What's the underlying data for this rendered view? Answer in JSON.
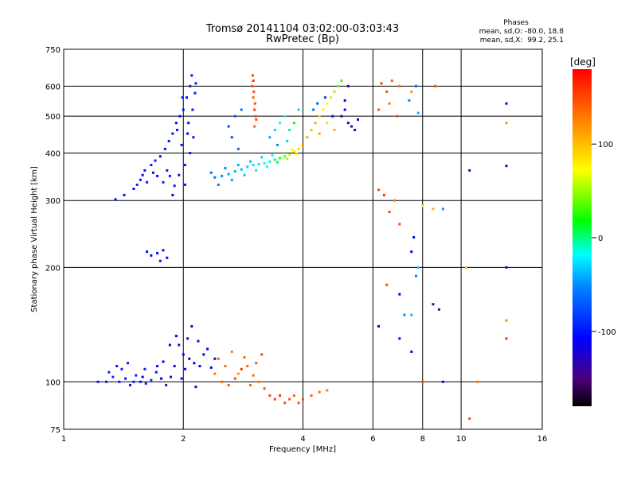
{
  "chart_data": {
    "type": "scatter",
    "title": "Tromsø 20141104 03:02:00-03:03:43",
    "subtitle": "RwPretec (Bp)",
    "xlabel": "Frequency [MHz]",
    "ylabel": "Stationary phase Virtual Height [km]",
    "x_scale": "log",
    "y_scale": "log",
    "xlim": [
      1,
      16
    ],
    "ylim": [
      75,
      750
    ],
    "x_ticks": [
      1,
      2,
      4,
      6,
      8,
      10,
      16
    ],
    "y_ticks": [
      75,
      100,
      200,
      300,
      400,
      500,
      600,
      750
    ],
    "grid": true,
    "legend": {
      "title": "Phases",
      "lines": [
        "mean, sd,O: -80.0, 18.8",
        "mean, sd,X:  99.2, 25.1"
      ],
      "position": "top-right"
    },
    "colorbar": {
      "label": "[deg]",
      "range": [
        -180,
        180
      ],
      "ticks": [
        100,
        0,
        -100
      ]
    },
    "series": [
      {
        "points": [
          [
            1.22,
            100,
            -100
          ],
          [
            1.28,
            100,
            -95
          ],
          [
            1.33,
            103,
            -90
          ],
          [
            1.36,
            110,
            -95
          ],
          [
            1.4,
            108,
            -90
          ],
          [
            1.43,
            102,
            -100
          ],
          [
            1.47,
            98,
            -95
          ],
          [
            1.52,
            104,
            -90
          ],
          [
            1.56,
            100,
            -100
          ],
          [
            1.61,
            99,
            -95
          ],
          [
            1.66,
            101,
            -90
          ],
          [
            1.71,
            106,
            -100
          ],
          [
            1.76,
            102,
            -110
          ],
          [
            1.81,
            98,
            -95
          ],
          [
            1.86,
            103,
            -100
          ],
          [
            1.9,
            110,
            -120
          ],
          [
            1.95,
            125,
            -130
          ],
          [
            2.0,
            118,
            -110
          ],
          [
            2.05,
            130,
            -120
          ],
          [
            2.1,
            140,
            -125
          ],
          [
            2.13,
            112,
            -110
          ],
          [
            2.15,
            97,
            -105
          ],
          [
            1.85,
            125,
            -115
          ],
          [
            1.92,
            132,
            -120
          ],
          [
            2.02,
            108,
            -110
          ],
          [
            2.2,
            110,
            -105
          ],
          [
            2.3,
            122,
            -115
          ],
          [
            2.4,
            115,
            -110
          ],
          [
            1.6,
            108,
            -95
          ],
          [
            1.72,
            110,
            -100
          ],
          [
            1.38,
            100,
            -95
          ],
          [
            1.5,
            100,
            -98
          ],
          [
            1.3,
            106,
            -92
          ],
          [
            1.45,
            112,
            -100
          ],
          [
            1.58,
            103,
            -105
          ],
          [
            1.78,
            113,
            -110
          ],
          [
            1.98,
            102,
            -100
          ],
          [
            2.07,
            115,
            -118
          ],
          [
            2.18,
            128,
            -122
          ],
          [
            2.25,
            118,
            -110
          ],
          [
            2.35,
            109,
            -105
          ],
          [
            1.35,
            302,
            -100
          ],
          [
            1.42,
            310,
            -100
          ],
          [
            1.5,
            322,
            -100
          ],
          [
            1.56,
            340,
            -100
          ],
          [
            1.6,
            360,
            -100
          ],
          [
            1.66,
            372,
            -100
          ],
          [
            1.7,
            382,
            -100
          ],
          [
            1.75,
            392,
            -100
          ],
          [
            1.8,
            410,
            -100
          ],
          [
            1.84,
            430,
            -100
          ],
          [
            1.88,
            450,
            -100
          ],
          [
            1.92,
            480,
            -100
          ],
          [
            1.96,
            500,
            -100
          ],
          [
            2.0,
            520,
            -100
          ],
          [
            2.04,
            560,
            -100
          ],
          [
            2.08,
            600,
            -100
          ],
          [
            2.1,
            640,
            -100
          ],
          [
            1.9,
            328,
            -100
          ],
          [
            1.95,
            350,
            -100
          ],
          [
            2.02,
            372,
            -100
          ],
          [
            2.08,
            400,
            -100
          ],
          [
            2.12,
            440,
            -100
          ],
          [
            1.78,
            335,
            -95
          ],
          [
            1.85,
            348,
            -100
          ],
          [
            2.15,
            610,
            -100
          ],
          [
            2.05,
            450,
            -110
          ],
          [
            1.72,
            348,
            -100
          ],
          [
            1.82,
            360,
            -100
          ],
          [
            1.98,
            420,
            -100
          ],
          [
            2.06,
            480,
            -105
          ],
          [
            1.88,
            310,
            -110
          ],
          [
            2.02,
            330,
            -100
          ],
          [
            1.93,
            460,
            -100
          ],
          [
            2.11,
            520,
            -100
          ],
          [
            1.68,
            355,
            -100
          ],
          [
            1.62,
            335,
            -100
          ],
          [
            1.53,
            330,
            -95
          ],
          [
            1.58,
            350,
            -100
          ],
          [
            1.99,
            560,
            -100
          ],
          [
            2.14,
            575,
            -100
          ],
          [
            1.62,
            220,
            -110
          ],
          [
            1.72,
            218,
            -100
          ],
          [
            1.78,
            222,
            -110
          ],
          [
            1.82,
            212,
            -105
          ],
          [
            1.75,
            208,
            -100
          ],
          [
            1.66,
            215,
            -110
          ],
          [
            2.4,
            345,
            -60
          ],
          [
            2.5,
            348,
            -50
          ],
          [
            2.6,
            352,
            -45
          ],
          [
            2.7,
            358,
            -40
          ],
          [
            2.8,
            362,
            -40
          ],
          [
            2.9,
            368,
            -30
          ],
          [
            3.0,
            372,
            -25
          ],
          [
            3.1,
            374,
            -20
          ],
          [
            3.2,
            376,
            -15
          ],
          [
            3.3,
            380,
            -10
          ],
          [
            3.4,
            384,
            0
          ],
          [
            3.5,
            388,
            20
          ],
          [
            3.6,
            392,
            40
          ],
          [
            3.7,
            396,
            60
          ],
          [
            3.8,
            404,
            80
          ],
          [
            3.9,
            410,
            90
          ],
          [
            4.0,
            418,
            100
          ],
          [
            2.45,
            330,
            -55
          ],
          [
            2.65,
            340,
            -45
          ],
          [
            2.85,
            350,
            -35
          ],
          [
            3.05,
            360,
            -25
          ],
          [
            3.25,
            368,
            -15
          ],
          [
            3.45,
            378,
            10
          ],
          [
            3.65,
            386,
            50
          ],
          [
            3.85,
            398,
            85
          ],
          [
            2.55,
            365,
            -55
          ],
          [
            2.75,
            372,
            -40
          ],
          [
            2.95,
            380,
            -35
          ],
          [
            3.15,
            390,
            -30
          ],
          [
            3.35,
            395,
            -20
          ],
          [
            3.55,
            400,
            30
          ],
          [
            3.75,
            408,
            70
          ],
          [
            2.35,
            355,
            -65
          ],
          [
            2.6,
            470,
            -80
          ],
          [
            2.7,
            500,
            -70
          ],
          [
            2.8,
            520,
            -60
          ],
          [
            2.65,
            440,
            -75
          ],
          [
            2.75,
            410,
            -65
          ],
          [
            2.98,
            600,
            150
          ],
          [
            3.0,
            560,
            140
          ],
          [
            3.02,
            520,
            155
          ],
          [
            3.04,
            500,
            145
          ],
          [
            2.99,
            640,
            150
          ],
          [
            3.01,
            580,
            150
          ],
          [
            3.03,
            540,
            145
          ],
          [
            3.05,
            490,
            150
          ],
          [
            3.0,
            620,
            160
          ],
          [
            3.02,
            470,
            140
          ],
          [
            3.3,
            440,
            -40
          ],
          [
            3.4,
            460,
            -30
          ],
          [
            3.5,
            480,
            -20
          ],
          [
            3.6,
            500,
            -10
          ],
          [
            3.7,
            460,
            0
          ],
          [
            3.8,
            480,
            20
          ],
          [
            3.9,
            520,
            -30
          ],
          [
            3.45,
            420,
            -50
          ],
          [
            3.65,
            430,
            -30
          ],
          [
            4.0,
            420,
            120
          ],
          [
            4.1,
            440,
            110
          ],
          [
            4.2,
            460,
            100
          ],
          [
            4.3,
            480,
            110
          ],
          [
            4.4,
            500,
            90
          ],
          [
            4.5,
            520,
            80
          ],
          [
            4.6,
            540,
            70
          ],
          [
            4.7,
            560,
            60
          ],
          [
            4.8,
            580,
            50
          ],
          [
            4.9,
            600,
            40
          ],
          [
            5.0,
            620,
            30
          ],
          [
            4.25,
            520,
            -60
          ],
          [
            4.35,
            540,
            -70
          ],
          [
            4.55,
            560,
            -80
          ],
          [
            4.75,
            500,
            -100
          ],
          [
            5.0,
            500,
            -120
          ],
          [
            5.1,
            520,
            -110
          ],
          [
            5.2,
            480,
            -130
          ],
          [
            5.3,
            470,
            -140
          ],
          [
            5.4,
            460,
            -135
          ],
          [
            5.5,
            490,
            -125
          ],
          [
            5.2,
            600,
            -120
          ],
          [
            5.1,
            550,
            -110
          ],
          [
            4.6,
            480,
            90
          ],
          [
            4.8,
            460,
            100
          ],
          [
            4.4,
            450,
            110
          ],
          [
            2.4,
            105,
            130
          ],
          [
            2.5,
            100,
            140
          ],
          [
            2.6,
            98,
            145
          ],
          [
            2.7,
            102,
            150
          ],
          [
            2.8,
            108,
            160
          ],
          [
            2.9,
            110,
            140
          ],
          [
            3.0,
            104,
            135
          ],
          [
            3.1,
            100,
            130
          ],
          [
            3.2,
            96,
            145
          ],
          [
            3.3,
            92,
            150
          ],
          [
            3.4,
            90,
            155
          ],
          [
            3.5,
            92,
            160
          ],
          [
            3.6,
            88,
            150
          ],
          [
            3.7,
            90,
            145
          ],
          [
            3.8,
            92,
            140
          ],
          [
            3.9,
            88,
            150
          ],
          [
            4.0,
            90,
            145
          ],
          [
            4.2,
            92,
            140
          ],
          [
            4.4,
            94,
            135
          ],
          [
            4.6,
            95,
            130
          ],
          [
            2.45,
            115,
            140
          ],
          [
            2.55,
            110,
            135
          ],
          [
            2.65,
            120,
            130
          ],
          [
            2.85,
            116,
            140
          ],
          [
            3.05,
            112,
            145
          ],
          [
            3.15,
            118,
            150
          ],
          [
            2.75,
            105,
            120
          ],
          [
            2.95,
            98,
            140
          ],
          [
            6.3,
            610,
            160
          ],
          [
            6.5,
            580,
            150
          ],
          [
            6.7,
            620,
            140
          ],
          [
            7.0,
            600,
            130
          ],
          [
            7.5,
            580,
            120
          ],
          [
            6.2,
            520,
            140
          ],
          [
            6.6,
            540,
            130
          ],
          [
            6.9,
            500,
            150
          ],
          [
            7.7,
            600,
            -60
          ],
          [
            7.4,
            550,
            -50
          ],
          [
            7.8,
            510,
            -40
          ],
          [
            6.2,
            320,
            150
          ],
          [
            6.4,
            310,
            160
          ],
          [
            6.6,
            280,
            150
          ],
          [
            6.8,
            300,
            130
          ],
          [
            7.0,
            260,
            150
          ],
          [
            7.5,
            220,
            -110
          ],
          [
            7.6,
            240,
            -115
          ],
          [
            6.5,
            180,
            150
          ],
          [
            7.0,
            170,
            -110
          ],
          [
            7.2,
            150,
            -50
          ],
          [
            7.5,
            150,
            -40
          ],
          [
            7.7,
            190,
            -60
          ],
          [
            7.8,
            200,
            -30
          ],
          [
            8.5,
            160,
            -150
          ],
          [
            8.8,
            155,
            -140
          ],
          [
            6.2,
            140,
            -110
          ],
          [
            7.0,
            130,
            -100
          ],
          [
            7.5,
            120,
            -110
          ],
          [
            8.0,
            100,
            150
          ],
          [
            9.0,
            100,
            -120
          ],
          [
            10.5,
            80,
            150
          ],
          [
            11.0,
            100,
            130
          ],
          [
            13.0,
            130,
            160
          ],
          [
            13.0,
            145,
            120
          ],
          [
            13.0,
            200,
            -130
          ],
          [
            8.0,
            290,
            80
          ],
          [
            8.5,
            285,
            100
          ],
          [
            9.0,
            285,
            -50
          ],
          [
            10.5,
            360,
            -130
          ],
          [
            13.0,
            370,
            -120
          ],
          [
            13.0,
            540,
            -120
          ],
          [
            13.0,
            480,
            120
          ],
          [
            8.6,
            600,
            150
          ],
          [
            10.3,
            200,
            100
          ]
        ]
      }
    ]
  }
}
